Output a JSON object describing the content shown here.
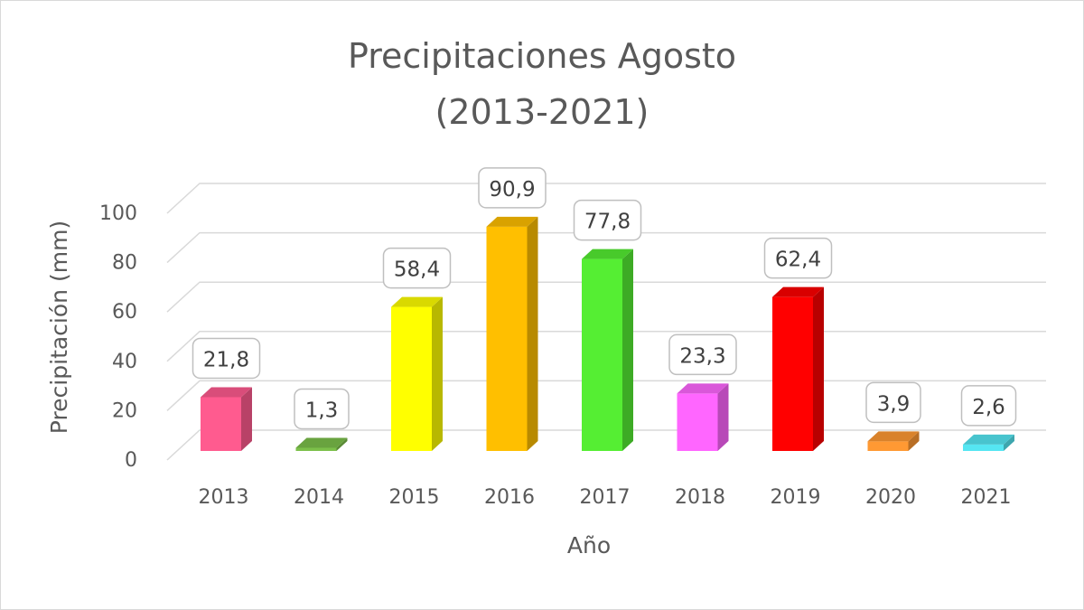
{
  "chart_data": {
    "type": "bar",
    "title_line1": "Precipitaciones Agosto",
    "title_line2": "(2013-2021)",
    "xlabel": "Año",
    "ylabel": "Precipitación (mm)",
    "ylim": [
      0,
      100
    ],
    "yticks": [
      "0",
      "20",
      "40",
      "60",
      "80",
      "100"
    ],
    "categories": [
      "2013",
      "2014",
      "2015",
      "2016",
      "2017",
      "2018",
      "2019",
      "2020",
      "2021"
    ],
    "values": [
      21.8,
      1.3,
      58.4,
      90.9,
      77.8,
      23.3,
      62.4,
      3.9,
      2.6
    ],
    "labels": [
      "21,8",
      "1,3",
      "58,4",
      "90,9",
      "77,8",
      "23,3",
      "62,4",
      "3,9",
      "2,6"
    ],
    "colors": [
      "#ff5b8f",
      "#7cc04a",
      "#ffff00",
      "#ffbf00",
      "#55ee33",
      "#ff66ff",
      "#ff0000",
      "#ff9933",
      "#55e6f2"
    ],
    "grid": true,
    "style": "3d-column"
  }
}
